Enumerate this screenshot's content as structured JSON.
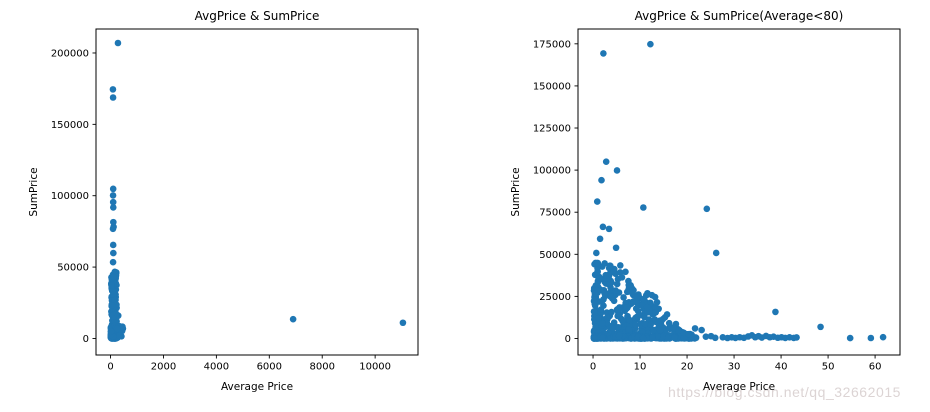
{
  "figure": {
    "background": "#ffffff",
    "watermark": {
      "text": "https://blog.csdn.net/qq_32662015",
      "color": "#dcd4d4"
    }
  },
  "chart_data": [
    {
      "type": "scatter",
      "title": "AvgPrice & SumPrice",
      "xlabel": "Average Price",
      "ylabel": "SumPrice",
      "xlim": [
        -550,
        11620
      ],
      "ylim": [
        -11600,
        216800
      ],
      "xticks": [
        0,
        2000,
        4000,
        6000,
        8000,
        10000
      ],
      "yticks": [
        0,
        50000,
        100000,
        150000,
        200000
      ],
      "grid": false,
      "legend_position": "none",
      "marker_color": "#1f77b4",
      "marker_radius_px": 3.3,
      "points": [
        [
          280,
          207000
        ],
        [
          90,
          174500
        ],
        [
          95,
          168800
        ],
        [
          100,
          104800
        ],
        [
          95,
          100200
        ],
        [
          100,
          95500
        ],
        [
          103,
          91800
        ],
        [
          105,
          81500
        ],
        [
          115,
          78200
        ],
        [
          92,
          76800
        ],
        [
          100,
          65500
        ],
        [
          105,
          59800
        ],
        [
          95,
          53400
        ],
        [
          290,
          16000
        ],
        [
          6900,
          13500
        ],
        [
          11050,
          11000
        ]
      ],
      "clusters": [
        {
          "name": "dense-vertical-bar",
          "count": 250,
          "seed": 11,
          "x": {
            "dist": "uniform",
            "min": 30,
            "max": 230
          },
          "y": {
            "dist": "power",
            "min": 0,
            "max": 47000,
            "exp": 1.6
          }
        },
        {
          "name": "base-extra-density",
          "count": 90,
          "seed": 12,
          "x": {
            "dist": "uniform",
            "min": 20,
            "max": 260
          },
          "y": {
            "dist": "power",
            "min": 0,
            "max": 3000,
            "exp": 1.2
          }
        },
        {
          "name": "base-blob",
          "count": 70,
          "seed": 13,
          "x": {
            "dist": "power",
            "min": 10,
            "max": 470,
            "exp": 1.7
          },
          "y": {
            "dist": "uniform",
            "min": 500,
            "max": 8800
          }
        }
      ]
    },
    {
      "type": "scatter",
      "title": "AvgPrice & SumPrice(Average<80)",
      "xlabel": "Average Price",
      "ylabel": "SumPrice",
      "xlim": [
        -3.2,
        65.3
      ],
      "ylim": [
        -9800,
        183800
      ],
      "xticks": [
        0,
        10,
        20,
        30,
        40,
        50,
        60
      ],
      "yticks": [
        0,
        25000,
        50000,
        75000,
        100000,
        125000,
        150000,
        175000
      ],
      "grid": false,
      "legend_position": "none",
      "marker_color": "#1f77b4",
      "marker_radius_px": 3.3,
      "points": [
        [
          12.2,
          174800
        ],
        [
          2.2,
          169300
        ],
        [
          2.8,
          105000
        ],
        [
          5.1,
          99800
        ],
        [
          1.8,
          94000
        ],
        [
          0.9,
          81300
        ],
        [
          10.7,
          77800
        ],
        [
          24.2,
          77000
        ],
        [
          2.1,
          66300
        ],
        [
          3.4,
          65100
        ],
        [
          1.5,
          59200
        ],
        [
          4.9,
          53900
        ],
        [
          0.7,
          50800
        ],
        [
          26.2,
          50800
        ],
        [
          38.8,
          15800
        ],
        [
          48.4,
          6900
        ],
        [
          21.7,
          6000
        ],
        [
          23.1,
          5000
        ],
        [
          54.7,
          250
        ],
        [
          59.1,
          300
        ],
        [
          61.7,
          800
        ],
        [
          27.6,
          700
        ],
        [
          28.6,
          300
        ],
        [
          29.5,
          700
        ],
        [
          30.3,
          350
        ],
        [
          31.2,
          750
        ],
        [
          32.1,
          400
        ],
        [
          33.0,
          1200
        ],
        [
          33.8,
          1900
        ],
        [
          34.5,
          750
        ],
        [
          35.2,
          1400
        ],
        [
          35.9,
          550
        ],
        [
          36.8,
          1500
        ],
        [
          37.6,
          750
        ],
        [
          38.4,
          1100
        ],
        [
          39.3,
          450
        ],
        [
          40.1,
          750
        ],
        [
          40.9,
          350
        ],
        [
          41.8,
          700
        ],
        [
          42.7,
          350
        ],
        [
          43.3,
          650
        ],
        [
          24.0,
          1100
        ],
        [
          25.1,
          1400
        ],
        [
          26.0,
          400
        ],
        [
          10.8,
          23500
        ],
        [
          12.2,
          21200
        ],
        [
          13.2,
          24600
        ],
        [
          11.5,
          18600
        ],
        [
          14.2,
          10600
        ],
        [
          15.3,
          12600
        ],
        [
          16.2,
          9100
        ],
        [
          17.1,
          6300
        ],
        [
          18.2,
          4600
        ],
        [
          19.3,
          3400
        ],
        [
          20.3,
          2600
        ],
        [
          6.9,
          39600
        ],
        [
          7.6,
          31700
        ],
        [
          5.8,
          43400
        ],
        [
          4.4,
          40200
        ],
        [
          3.7,
          43100
        ],
        [
          2.7,
          37600
        ],
        [
          8.4,
          26700
        ],
        [
          9.3,
          24200
        ]
      ],
      "clusters": [
        {
          "name": "dense-triangle-mass",
          "count": 430,
          "seed": 21,
          "x": {
            "dist": "power",
            "min": 0.2,
            "max": 21,
            "exp": 1.9
          },
          "y": {
            "dist": "envelope",
            "exp": 2.1,
            "envelope": [
              [
                0,
                45500
              ],
              [
                5,
                45500
              ],
              [
                8,
                38000
              ],
              [
                11,
                31000
              ],
              [
                14,
                22000
              ],
              [
                16,
                16000
              ],
              [
                18,
                9000
              ],
              [
                20,
                4500
              ],
              [
                21,
                3000
              ]
            ]
          }
        },
        {
          "name": "base-strip",
          "count": 180,
          "seed": 22,
          "x": {
            "dist": "power",
            "min": 0.2,
            "max": 22,
            "exp": 1.5
          },
          "y": {
            "dist": "power",
            "min": 0,
            "max": 1600,
            "exp": 1.5
          }
        }
      ]
    }
  ]
}
